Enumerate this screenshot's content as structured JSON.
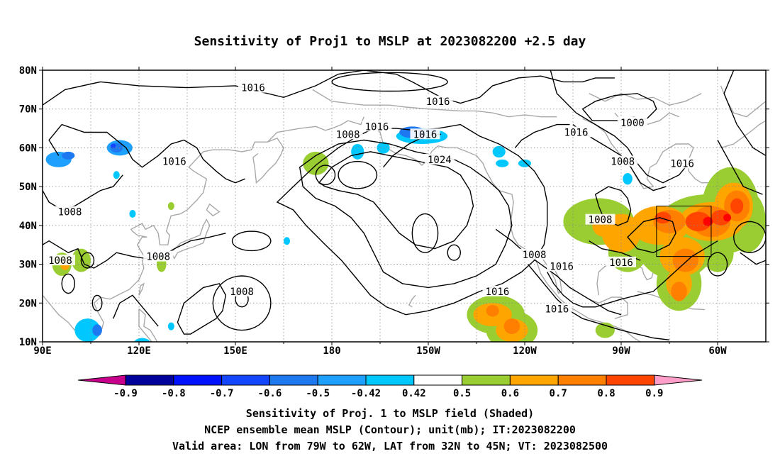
{
  "chart_data": {
    "type": "contour_map",
    "title": "Sensitivity of Proj1 to MSLP at 2023082200 +2.5 day",
    "x_ticks": [
      "90E",
      "120E",
      "150E",
      "180",
      "150W",
      "120W",
      "90W",
      "60W"
    ],
    "y_ticks": [
      "10N",
      "20N",
      "30N",
      "40N",
      "50N",
      "60N",
      "70N",
      "80N"
    ],
    "xlim": [
      90,
      315
    ],
    "ylim": [
      10,
      80
    ],
    "grid": true,
    "contour_levels": [
      1000,
      1008,
      1016,
      1024
    ],
    "contour_labels": [
      {
        "text": "1016",
        "lon": 155.5,
        "lat": 75.5
      },
      {
        "text": "1016",
        "lon": 213,
        "lat": 72
      },
      {
        "text": "1016",
        "lon": 194,
        "lat": 65.5
      },
      {
        "text": "1008",
        "lon": 185,
        "lat": 63.5
      },
      {
        "text": "1016",
        "lon": 209,
        "lat": 63.5
      },
      {
        "text": "1000",
        "lon": 273.5,
        "lat": 66.5
      },
      {
        "text": "1016",
        "lon": 256,
        "lat": 64
      },
      {
        "text": "1016",
        "lon": 131,
        "lat": 56.5
      },
      {
        "text": "1024",
        "lon": 213.5,
        "lat": 57
      },
      {
        "text": "1008",
        "lon": 270.5,
        "lat": 56.5
      },
      {
        "text": "1016",
        "lon": 289,
        "lat": 56
      },
      {
        "text": "1008",
        "lon": 98.5,
        "lat": 43.5
      },
      {
        "text": "1008",
        "lon": 263.5,
        "lat": 41.5
      },
      {
        "text": "1008",
        "lon": 126,
        "lat": 32
      },
      {
        "text": "1008",
        "lon": 95.5,
        "lat": 31
      },
      {
        "text": "1008",
        "lon": 243,
        "lat": 32.5
      },
      {
        "text": "1016",
        "lon": 251.5,
        "lat": 29.5
      },
      {
        "text": "1016",
        "lon": 270,
        "lat": 30.5
      },
      {
        "text": "1016",
        "lon": 231.5,
        "lat": 23
      },
      {
        "text": "1008",
        "lon": 152,
        "lat": 23
      },
      {
        "text": "1016",
        "lon": 250,
        "lat": 18.5
      }
    ],
    "colorbar": {
      "ticks": [
        "-0.9",
        "-0.8",
        "-0.7",
        "-0.6",
        "-0.5",
        "-0.42",
        "0.42",
        "0.5",
        "0.6",
        "0.7",
        "0.8",
        "0.9"
      ],
      "colors": [
        "#00009c",
        "#0011ff",
        "#1446ff",
        "#1e78f0",
        "#1ea0ff",
        "#00c8ff",
        "#ffffff",
        "#9acd32",
        "#ffa500",
        "#ff7f00",
        "#ff4500",
        "#ff0000"
      ],
      "low_extend_color": "#c8008c",
      "high_extend_color": "#ff9ec8"
    },
    "valid_area": {
      "lon_range": [
        -79,
        -62
      ],
      "lat_range": [
        32,
        45
      ]
    },
    "notes": [
      "Sensitivity of Proj. 1 to MSLP field (Shaded)",
      "NCEP ensemble mean MSLP (Contour); unit(mb); IT:2023082200",
      "Valid area: LON from 79W to 62W, LAT from 32N to 45N; VT: 2023082500"
    ]
  }
}
